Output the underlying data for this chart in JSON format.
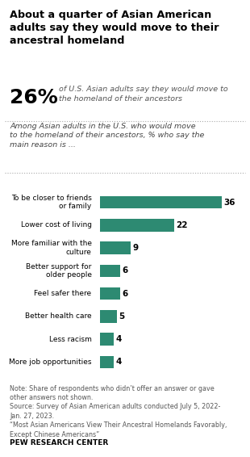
{
  "title": "About a quarter of Asian American\nadults say they would move to their\nancestral homeland",
  "highlight_pct": "26%",
  "highlight_text": "of U.S. Asian adults say they would move to\nthe homeland of their ancestors",
  "subtitle_text": "Among Asian adults in the U.S. who would move\nto the homeland of their ancestors, % who say the\nmain reason is ...",
  "categories": [
    "To be closer to friends\nor family",
    "Lower cost of living",
    "More familiar with the\nculture",
    "Better support for\nolder people",
    "Feel safer there",
    "Better health care",
    "Less racism",
    "More job opportunities"
  ],
  "values": [
    36,
    22,
    9,
    6,
    6,
    5,
    4,
    4
  ],
  "bar_color": "#2d8a72",
  "value_color": "#000000",
  "background_color": "#ffffff",
  "note": "Note: Share of respondents who didn’t offer an answer or gave\nother answers not shown.\nSource: Survey of Asian American adults conducted July 5, 2022-\nJan. 27, 2023.\n“Most Asian Americans View Their Ancestral Homelands Favorably,\nExcept Chinese Americans”",
  "source_bold": "PEW RESEARCH CENTER",
  "xlim": [
    0,
    40
  ]
}
